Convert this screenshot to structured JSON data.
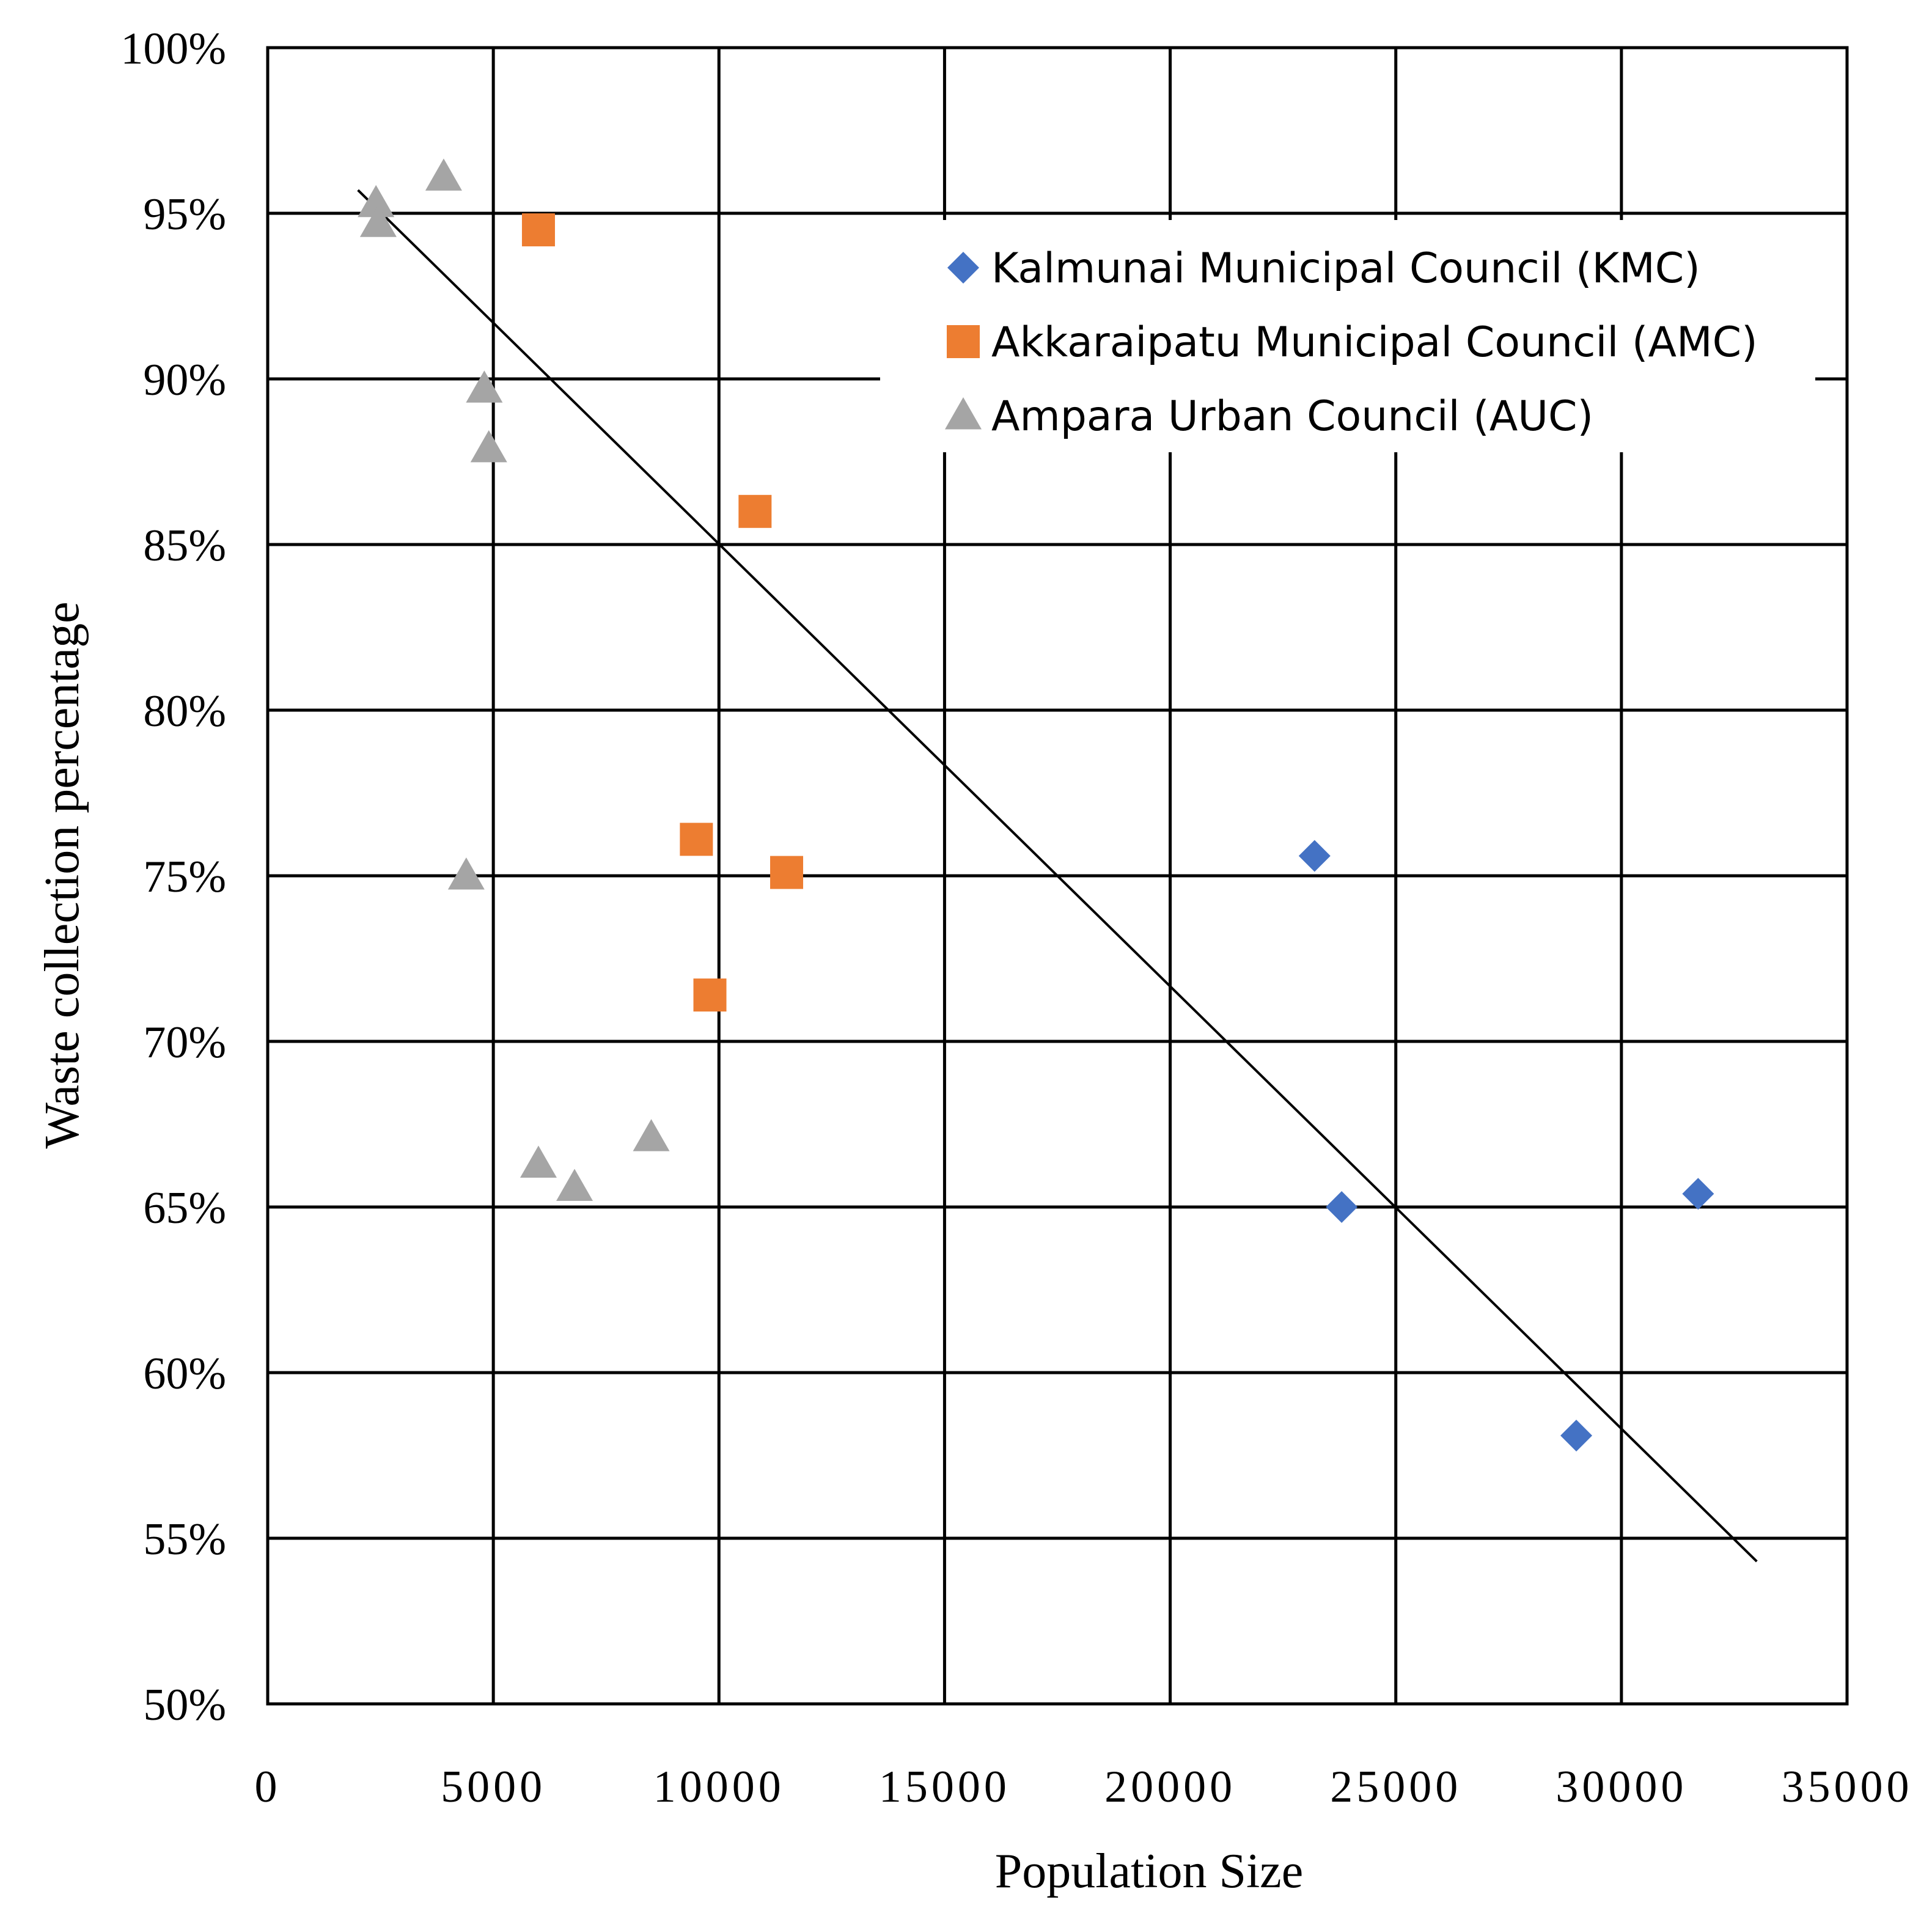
{
  "chart_data": {
    "type": "scatter",
    "title": "",
    "xlabel": "Population Size",
    "ylabel": "Waste collection percentage",
    "xlim": [
      0,
      35000
    ],
    "ylim": [
      50,
      100
    ],
    "x_ticks": [
      0,
      5000,
      10000,
      15000,
      20000,
      25000,
      30000,
      35000
    ],
    "x_tick_labels": [
      "0",
      "5000",
      "10000",
      "15000",
      "20000",
      "25000",
      "30000",
      "35000"
    ],
    "y_ticks": [
      50,
      55,
      60,
      65,
      70,
      75,
      80,
      85,
      90,
      95,
      100
    ],
    "y_tick_labels": [
      "50%",
      "55%",
      "60%",
      "65%",
      "70%",
      "75%",
      "80%",
      "85%",
      "90%",
      "95%",
      "100%"
    ],
    "grid": true,
    "legend_position": "top-right",
    "series": [
      {
        "name": "Kalmunai Municipal Council (KMC)",
        "marker": "diamond",
        "color": "#4472C4",
        "points": [
          {
            "x": 23200,
            "y": 75.6
          },
          {
            "x": 23800,
            "y": 65.0
          },
          {
            "x": 31700,
            "y": 65.4
          },
          {
            "x": 29000,
            "y": 58.1
          }
        ]
      },
      {
        "name": "Akkaraipatu Municipal Council (AMC)",
        "marker": "square",
        "color": "#ED7D31",
        "points": [
          {
            "x": 6000,
            "y": 94.5
          },
          {
            "x": 10800,
            "y": 86.0
          },
          {
            "x": 9500,
            "y": 76.1
          },
          {
            "x": 11500,
            "y": 75.1
          },
          {
            "x": 9800,
            "y": 71.4
          }
        ]
      },
      {
        "name": "Ampara Urban Council (AUC)",
        "marker": "triangle",
        "color": "#A5A5A5",
        "points": [
          {
            "x": 2400,
            "y": 95.3
          },
          {
            "x": 2450,
            "y": 94.7
          },
          {
            "x": 3900,
            "y": 96.1
          },
          {
            "x": 4800,
            "y": 89.7
          },
          {
            "x": 4900,
            "y": 87.9
          },
          {
            "x": 4400,
            "y": 75.0
          },
          {
            "x": 6000,
            "y": 66.3
          },
          {
            "x": 6800,
            "y": 65.6
          },
          {
            "x": 8500,
            "y": 67.1
          }
        ]
      }
    ],
    "trendline": {
      "type": "linear",
      "color": "#000000",
      "points": [
        {
          "x": 2000,
          "y": 95.7
        },
        {
          "x": 33000,
          "y": 54.3
        }
      ]
    }
  }
}
